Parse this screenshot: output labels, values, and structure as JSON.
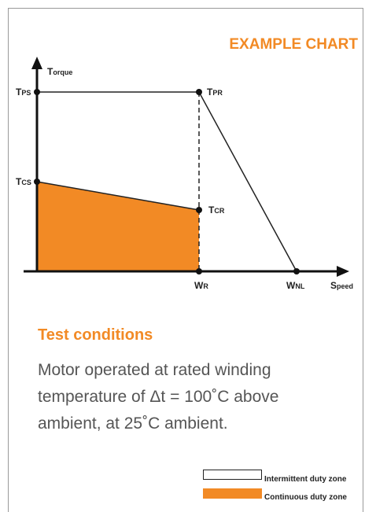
{
  "title": "EXAMPLE CHART",
  "axes": {
    "y": {
      "base": "T",
      "rest": "orque"
    },
    "x": {
      "base": "S",
      "rest": "peed"
    }
  },
  "points": {
    "tps": {
      "base": "T",
      "sub": "PS"
    },
    "tpr": {
      "base": "T",
      "sub": "PR"
    },
    "tcs": {
      "base": "T",
      "sub": "CS"
    },
    "tcr": {
      "base": "T",
      "sub": "CR"
    },
    "wr": {
      "base": "W",
      "sub": "R"
    },
    "wnl": {
      "base": "W",
      "sub": "NL"
    }
  },
  "conditions": {
    "heading": "Test conditions",
    "lines": [
      "Motor operated at rated winding",
      "temperature of Δt = 100˚C above",
      "ambient, at 25˚C ambient."
    ]
  },
  "legend": [
    "Intermittent duty zone",
    "Continuous duty zone"
  ]
}
